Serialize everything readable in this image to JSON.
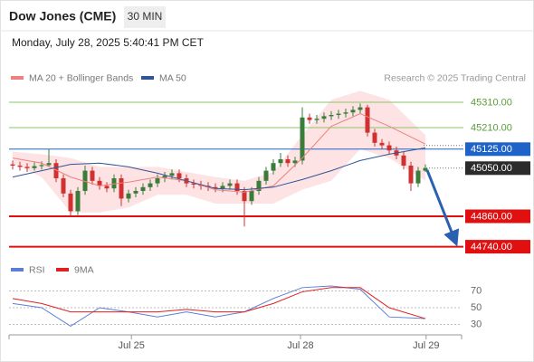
{
  "header": {
    "title": "Dow Jones (CME)",
    "interval": "30 MIN",
    "timestamp": "Monday, July 28, 2025 5:40:41 PM CET"
  },
  "chart_data": [
    {
      "type": "candlestick",
      "attribution": "Research © 2025 Trading Central",
      "xlim": [
        -0.5,
        62
      ],
      "ylim": [
        44700,
        45430
      ],
      "up_color": "#3a7d3a",
      "down_color": "#d03030",
      "open": [
        45065,
        45060,
        45055,
        45050,
        45058,
        45062,
        45070,
        45010,
        44950,
        44880,
        44960,
        45040,
        45000,
        44980,
        44970,
        45010,
        44930,
        44950,
        44960,
        44975,
        44990,
        45010,
        45020,
        45030,
        45010,
        44990,
        44985,
        44980,
        44975,
        44970,
        44980,
        44990,
        44960,
        44920,
        44960,
        45000,
        45040,
        45070,
        45085,
        45070,
        45080,
        45250,
        45240,
        45245,
        45255,
        45260,
        45265,
        45270,
        45280,
        45290,
        45190,
        45150,
        45140,
        45120,
        45100,
        45060,
        44990,
        45040
      ],
      "high": [
        45080,
        45075,
        45070,
        45073,
        45077,
        45125,
        45085,
        45025,
        44965,
        44975,
        45060,
        45055,
        45015,
        44995,
        45025,
        45025,
        44965,
        44975,
        44990,
        45005,
        45025,
        45035,
        45045,
        45045,
        45025,
        45005,
        45000,
        44995,
        44990,
        44995,
        45005,
        45005,
        44975,
        44975,
        45015,
        45055,
        45085,
        45110,
        45100,
        45095,
        45290,
        45265,
        45260,
        45270,
        45275,
        45280,
        45285,
        45295,
        45305,
        45300,
        45205,
        45165,
        45155,
        45135,
        45115,
        45075,
        45055,
        45065
      ],
      "low": [
        45045,
        45040,
        45035,
        45040,
        45045,
        45055,
        44995,
        44935,
        44860,
        44865,
        44945,
        44985,
        44965,
        44955,
        44955,
        44900,
        44915,
        44935,
        44945,
        44960,
        44975,
        44995,
        45005,
        44995,
        44975,
        44970,
        44965,
        44960,
        44955,
        44955,
        44965,
        44945,
        44820,
        44905,
        44945,
        44985,
        45025,
        45055,
        45055,
        45055,
        45065,
        45225,
        45225,
        45230,
        45240,
        45245,
        45250,
        45255,
        45265,
        45175,
        45135,
        45125,
        45105,
        45085,
        45045,
        44960,
        44975,
        45035
      ],
      "close": [
        45060,
        45055,
        45050,
        45058,
        45062,
        45070,
        45010,
        44950,
        44880,
        44960,
        45040,
        45000,
        44980,
        44970,
        45010,
        44930,
        44950,
        44960,
        44975,
        44990,
        45010,
        45020,
        45030,
        45010,
        44990,
        44985,
        44980,
        44975,
        44970,
        44980,
        44990,
        44960,
        44920,
        44960,
        45000,
        45040,
        45070,
        45085,
        45070,
        45080,
        45250,
        45240,
        45245,
        45255,
        45260,
        45265,
        45270,
        45280,
        45290,
        45190,
        45150,
        45140,
        45120,
        45100,
        45060,
        44990,
        45040,
        45050
      ],
      "series": [
        {
          "name": "MA 20 + Bollinger Bands",
          "color": "#f08080",
          "band_color": "#fcdcdc",
          "x": [
            0,
            4,
            8,
            12,
            16,
            20,
            24,
            28,
            32,
            36,
            40,
            44,
            48,
            52,
            57
          ],
          "values": [
            45090,
            45070,
            45015,
            44980,
            44995,
            45015,
            45000,
            44965,
            44955,
            44980,
            45090,
            45215,
            45265,
            45215,
            45145
          ],
          "upper": [
            45115,
            45105,
            45090,
            45055,
            45055,
            45055,
            45035,
            45015,
            45000,
            45035,
            45180,
            45320,
            45355,
            45320,
            45180
          ],
          "lower": [
            45070,
            45015,
            44875,
            44875,
            44895,
            44945,
            44945,
            44910,
            44910,
            44910,
            44965,
            45000,
            45125,
            45090,
            45000
          ]
        },
        {
          "name": "MA 50",
          "color": "#2f5597",
          "x": [
            0,
            4,
            8,
            12,
            16,
            20,
            24,
            28,
            32,
            36,
            40,
            44,
            48,
            52,
            57
          ],
          "values": [
            45015,
            45040,
            45065,
            45070,
            45055,
            45030,
            45000,
            44970,
            44965,
            44975,
            45005,
            45040,
            45080,
            45105,
            45130
          ]
        }
      ],
      "levels": [
        {
          "value": 45310,
          "label": "45310.00",
          "color": "#8cc56a",
          "text_color": "#5a9e3a",
          "boxed": false,
          "line": "solid",
          "width": 1
        },
        {
          "value": 45210,
          "label": "45210.00",
          "color": "#8cc56a",
          "text_color": "#5a9e3a",
          "boxed": false,
          "line": "solid",
          "width": 1
        },
        {
          "value": 45125,
          "label": "45125.00",
          "color": "#1e64c8",
          "text_color": "#ffffff",
          "boxed": true,
          "line": "solid",
          "width": 1
        },
        {
          "value": 45050,
          "label": "45050.00",
          "color": "#2b2b2b",
          "text_color": "#ffffff",
          "boxed": true,
          "line": "dotted",
          "width": 1
        },
        {
          "value": 44860,
          "label": "44860.00",
          "color": "#e01010",
          "text_color": "#ffffff",
          "boxed": true,
          "line": "solid",
          "width": 2
        },
        {
          "value": 44740,
          "label": "44740.00",
          "color": "#e01010",
          "text_color": "#ffffff",
          "boxed": true,
          "line": "solid",
          "width": 2
        }
      ]
    },
    {
      "type": "line",
      "xlim": [
        -0.5,
        62
      ],
      "ylim": [
        15,
        100
      ],
      "yticks": [
        30,
        50,
        70
      ],
      "xticks": [
        {
          "value": 16.4,
          "label": "Jul 25"
        },
        {
          "value": 39.75,
          "label": "Jul 28"
        },
        {
          "value": 57.1,
          "label": "Jul 29"
        }
      ],
      "series": [
        {
          "name": "RSI",
          "color": "#5b7fd6",
          "x": [
            0,
            4,
            8,
            12,
            16,
            20,
            24,
            28,
            32,
            36,
            40,
            44,
            48,
            52,
            57
          ],
          "values": [
            55,
            50,
            28,
            50,
            45,
            39,
            45,
            39,
            45,
            61,
            74,
            76,
            72,
            39,
            37
          ]
        },
        {
          "name": "9MA",
          "color": "#e02020",
          "x": [
            0,
            4,
            8,
            12,
            16,
            20,
            24,
            28,
            32,
            36,
            40,
            44,
            48,
            52,
            57
          ],
          "values": [
            61,
            55,
            45,
            45,
            45,
            45,
            48,
            45,
            45,
            55,
            69,
            74,
            74,
            50,
            37
          ]
        }
      ]
    }
  ]
}
